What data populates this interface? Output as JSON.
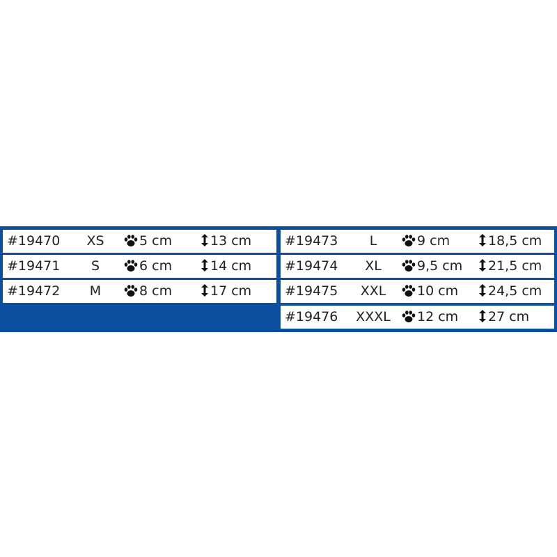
{
  "colors": {
    "panel": "#0b4f9e",
    "row": "#ffffff"
  },
  "icons": {
    "width": "paw-icon",
    "length": "vertical-arrow-icon"
  },
  "left": [
    {
      "code": "#19470",
      "size": "XS",
      "width": "5 cm",
      "length": "13 cm"
    },
    {
      "code": "#19471",
      "size": "S",
      "width": "6 cm",
      "length": "14 cm"
    },
    {
      "code": "#19472",
      "size": "M",
      "width": "8 cm",
      "length": "17 cm"
    }
  ],
  "right": [
    {
      "code": "#19473",
      "size": "L",
      "width": "9 cm",
      "length": "18,5 cm"
    },
    {
      "code": "#19474",
      "size": "XL",
      "width": "9,5 cm",
      "length": "21,5 cm"
    },
    {
      "code": "#19475",
      "size": "XXL",
      "width": "10 cm",
      "length": "24,5 cm"
    },
    {
      "code": "#19476",
      "size": "XXXL",
      "width": "12 cm",
      "length": "27 cm"
    }
  ]
}
